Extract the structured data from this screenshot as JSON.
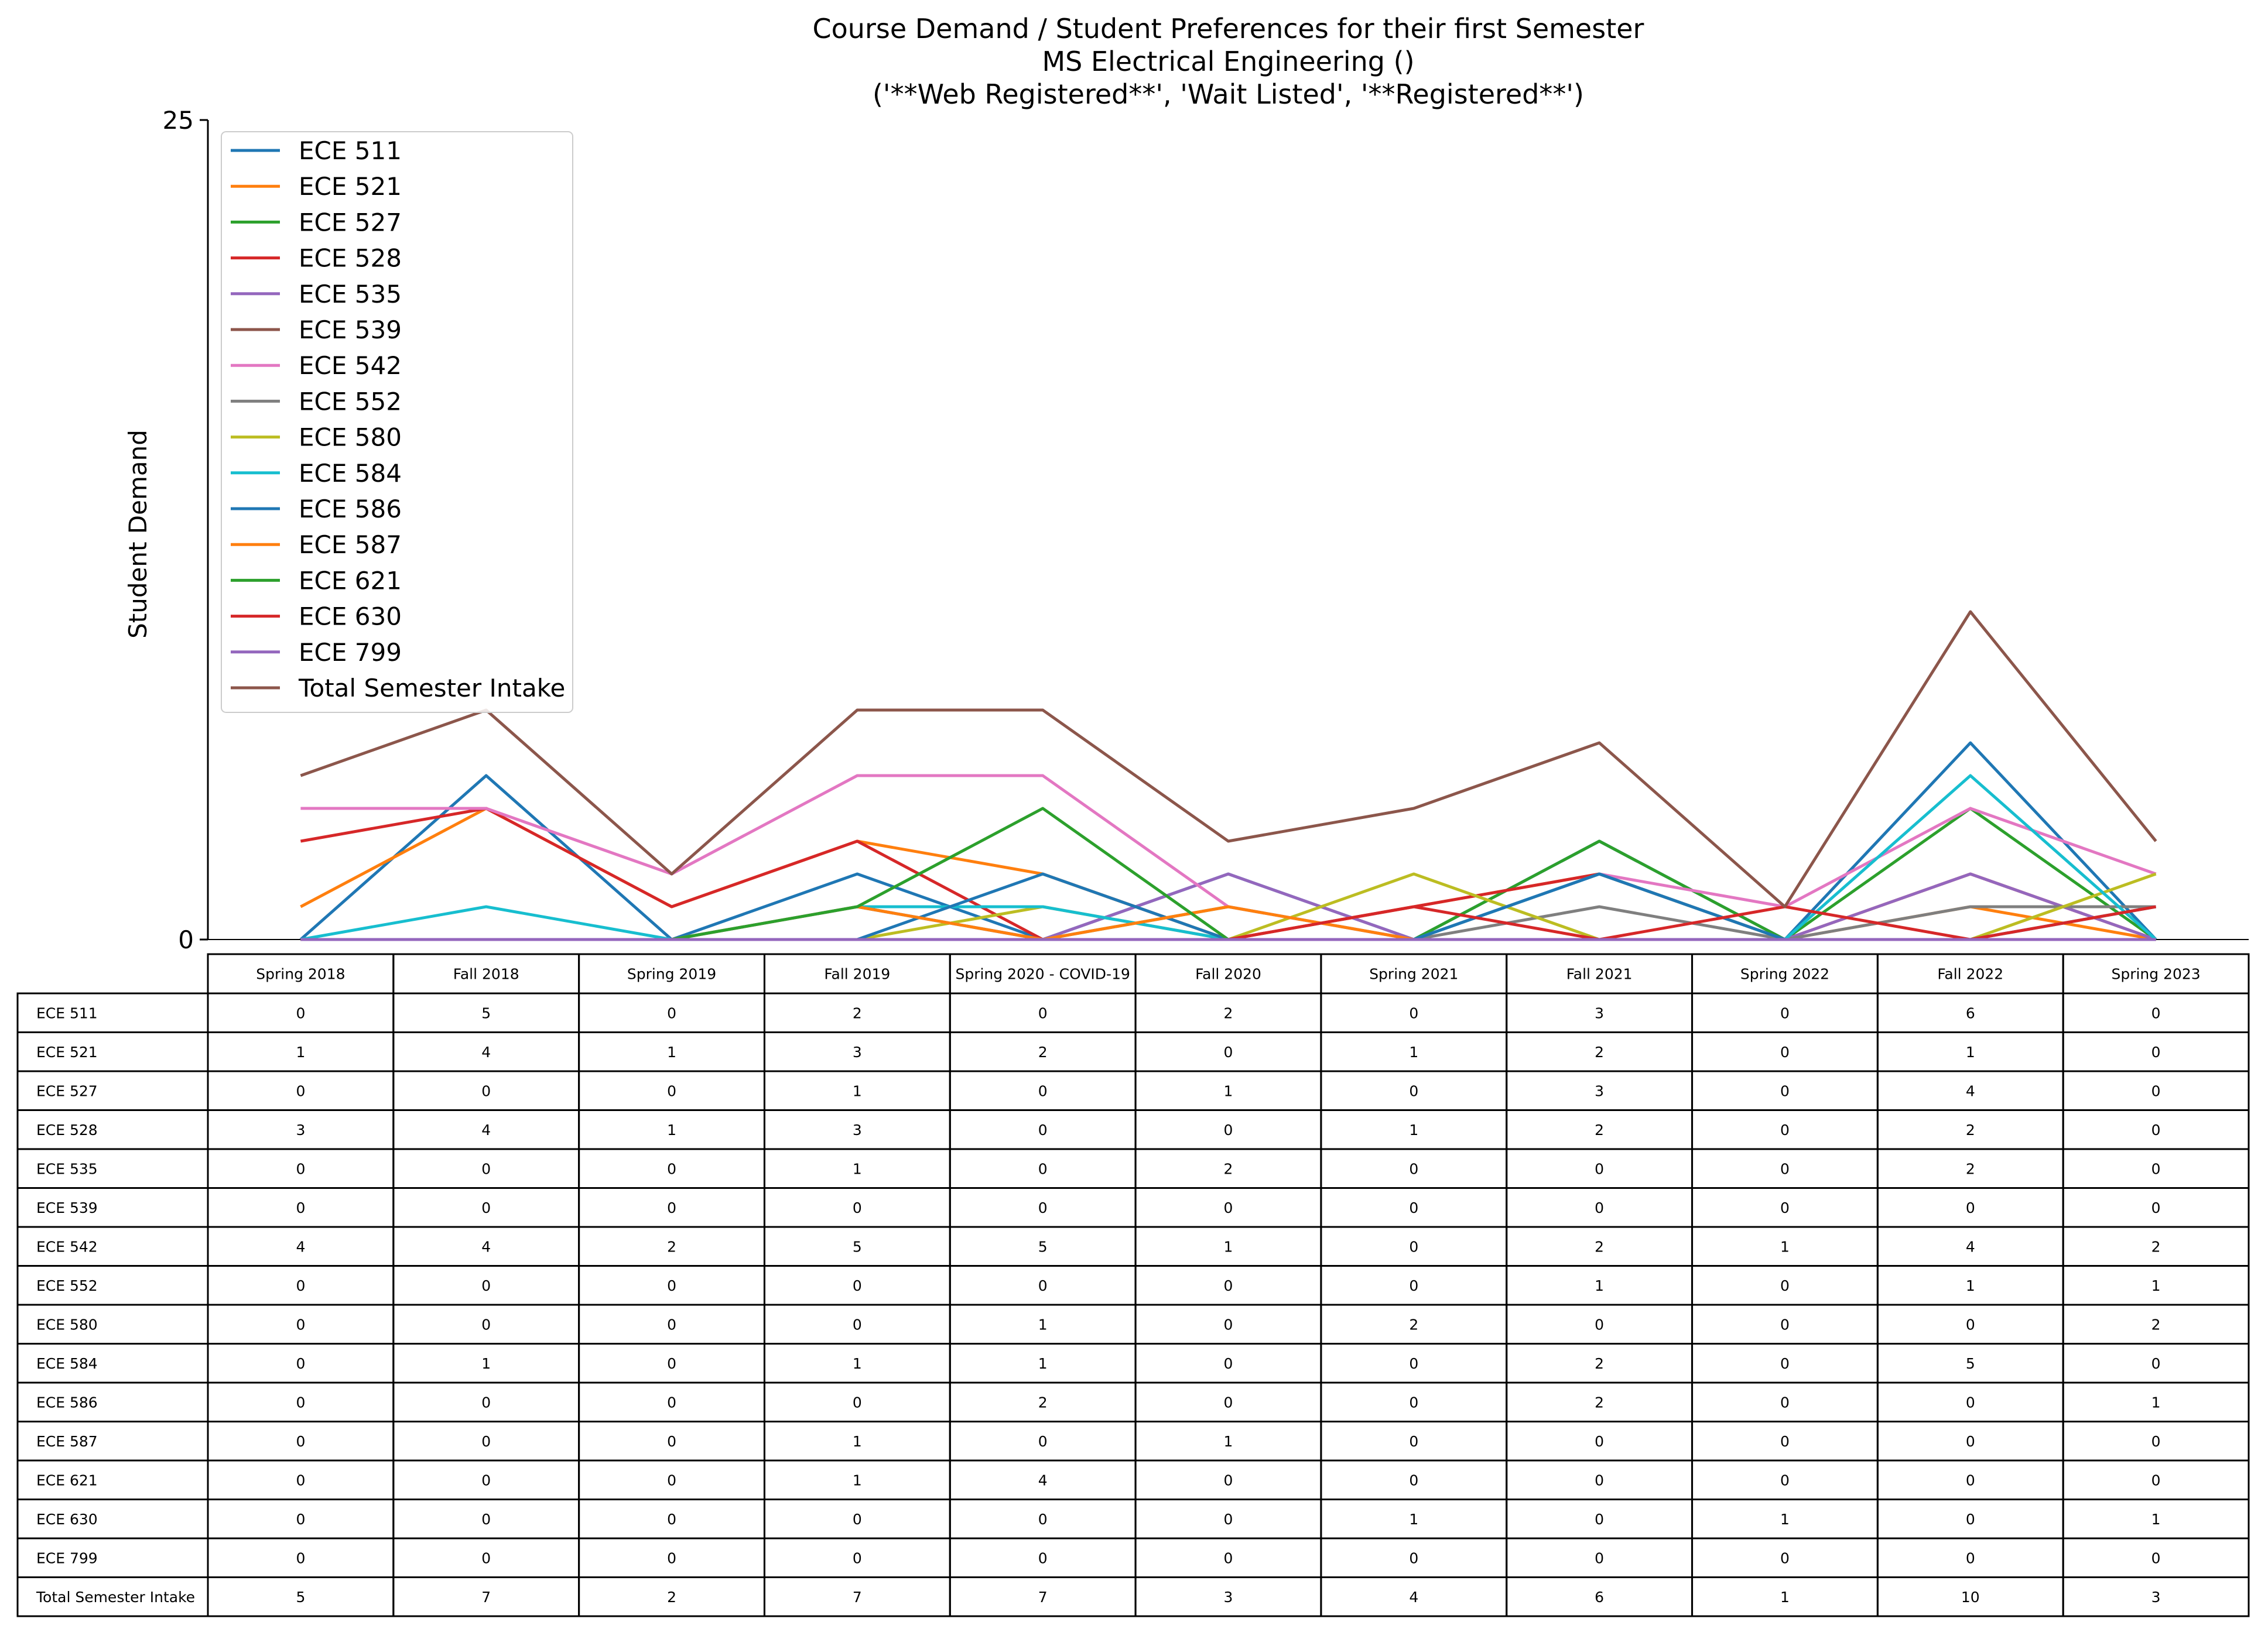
{
  "chart_data": {
    "type": "line",
    "title_lines": [
      "Course Demand / Student Preferences for their first Semester",
      "MS Electrical Engineering ()",
      "('**Web Registered**', 'Wait Listed', '**Registered**')"
    ],
    "xlabel": "",
    "ylabel": "Student Demand",
    "ylim": [
      0,
      25
    ],
    "yticks": [
      "0",
      "25"
    ],
    "grid": false,
    "legend_position": "top-left",
    "categories": [
      "Spring 2018",
      "Fall 2018",
      "Spring 2019",
      "Fall 2019",
      "Spring 2020 - COVID-19",
      "Fall 2020",
      "Spring 2021",
      "Fall 2021",
      "Spring 2022",
      "Fall 2022",
      "Spring 2023"
    ],
    "series": [
      {
        "name": "ECE 511",
        "color": "#1f77b4",
        "values": [
          0,
          5,
          0,
          2,
          0,
          2,
          0,
          3,
          0,
          6,
          0
        ]
      },
      {
        "name": "ECE 521",
        "color": "#ff7f0e",
        "values": [
          1,
          4,
          1,
          3,
          2,
          0,
          1,
          2,
          0,
          1,
          0
        ]
      },
      {
        "name": "ECE 527",
        "color": "#2ca02c",
        "values": [
          0,
          0,
          0,
          1,
          0,
          1,
          0,
          3,
          0,
          4,
          0
        ]
      },
      {
        "name": "ECE 528",
        "color": "#d62728",
        "values": [
          3,
          4,
          1,
          3,
          0,
          0,
          1,
          2,
          0,
          2,
          0
        ]
      },
      {
        "name": "ECE 535",
        "color": "#9467bd",
        "values": [
          0,
          0,
          0,
          1,
          0,
          2,
          0,
          0,
          0,
          2,
          0
        ]
      },
      {
        "name": "ECE 539",
        "color": "#8c564b",
        "values": [
          0,
          0,
          0,
          0,
          0,
          0,
          0,
          0,
          0,
          0,
          0
        ]
      },
      {
        "name": "ECE 542",
        "color": "#e377c2",
        "values": [
          4,
          4,
          2,
          5,
          5,
          1,
          0,
          2,
          1,
          4,
          2
        ]
      },
      {
        "name": "ECE 552",
        "color": "#7f7f7f",
        "values": [
          0,
          0,
          0,
          0,
          0,
          0,
          0,
          1,
          0,
          1,
          1
        ]
      },
      {
        "name": "ECE 580",
        "color": "#bcbd22",
        "values": [
          0,
          0,
          0,
          0,
          1,
          0,
          2,
          0,
          0,
          0,
          2
        ]
      },
      {
        "name": "ECE 584",
        "color": "#17becf",
        "values": [
          0,
          1,
          0,
          1,
          1,
          0,
          0,
          2,
          0,
          5,
          0
        ]
      },
      {
        "name": "ECE 586",
        "color": "#1f77b4",
        "values": [
          0,
          0,
          0,
          0,
          2,
          0,
          0,
          2,
          0,
          0,
          1
        ]
      },
      {
        "name": "ECE 587",
        "color": "#ff7f0e",
        "values": [
          0,
          0,
          0,
          1,
          0,
          1,
          0,
          0,
          0,
          0,
          0
        ]
      },
      {
        "name": "ECE 621",
        "color": "#2ca02c",
        "values": [
          0,
          0,
          0,
          1,
          4,
          0,
          0,
          0,
          0,
          0,
          0
        ]
      },
      {
        "name": "ECE 630",
        "color": "#d62728",
        "values": [
          0,
          0,
          0,
          0,
          0,
          0,
          1,
          0,
          1,
          0,
          1
        ]
      },
      {
        "name": "ECE 799",
        "color": "#9467bd",
        "values": [
          0,
          0,
          0,
          0,
          0,
          0,
          0,
          0,
          0,
          0,
          0
        ]
      },
      {
        "name": "Total Semester Intake",
        "color": "#8c564b",
        "values": [
          5,
          7,
          2,
          7,
          7,
          3,
          4,
          6,
          1,
          10,
          3
        ]
      }
    ]
  }
}
